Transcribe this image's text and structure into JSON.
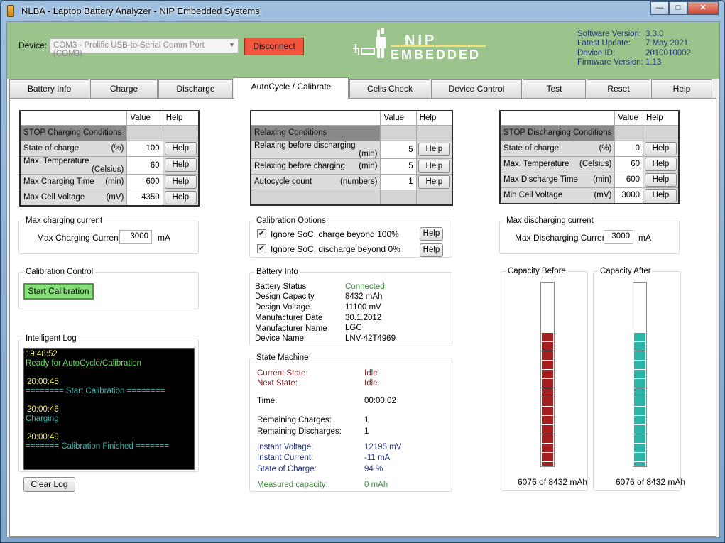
{
  "window": {
    "title": "NLBA - Laptop Battery Analyzer - NIP Embedded Systems",
    "minimize": "—",
    "maximize": "□",
    "close": "✕"
  },
  "header": {
    "device_label": "Device:",
    "device_value": "COM3 - Prolific USB-to-Serial Comm Port (COM3)",
    "disconnect": "Disconnect",
    "logo_line1": "NIP",
    "logo_line2": "EMBEDDED",
    "info": [
      {
        "k": "Software Version:",
        "v": "3.3.0"
      },
      {
        "k": "Latest Update:",
        "v": "7 May 2021"
      },
      {
        "k": "Device ID:",
        "v": "2010010002"
      },
      {
        "k": "Firmware Version:",
        "v": "1.13"
      }
    ]
  },
  "tabs": [
    "Battery Info",
    "Charge",
    "Discharge",
    "AutoCycle / Calibrate",
    "Cells Check",
    "Device Control",
    "Test",
    "Reset",
    "Help"
  ],
  "active_tab": "AutoCycle / Calibrate",
  "stop_charge": {
    "col_value": "Value",
    "col_help": "Help",
    "section": "STOP Charging Conditions",
    "rows": [
      {
        "name": "State of charge",
        "unit": "(%)",
        "value": "100",
        "help": "Help"
      },
      {
        "name": "Max. Temperature",
        "unit": "(Celsius)",
        "value": "60",
        "help": "Help"
      },
      {
        "name": "Max Charging Time",
        "unit": "(min)",
        "value": "600",
        "help": "Help"
      },
      {
        "name": "Max Cell Voltage",
        "unit": "(mV)",
        "value": "4350",
        "help": "Help"
      }
    ]
  },
  "relaxing": {
    "col_value": "Value",
    "col_help": "Help",
    "section": "Relaxing Conditions",
    "rows": [
      {
        "name": "Relaxing before discharging",
        "unit": "(min)",
        "value": "5",
        "help": "Help"
      },
      {
        "name": "Relaxing before charging",
        "unit": "(min)",
        "value": "5",
        "help": "Help"
      },
      {
        "name": "Autocycle count",
        "unit": "(numbers)",
        "value": "1",
        "help": "Help"
      }
    ]
  },
  "stop_discharge": {
    "col_value": "Value",
    "col_help": "Help",
    "section": "STOP Discharging Conditions",
    "rows": [
      {
        "name": "State of charge",
        "unit": "(%)",
        "value": "0",
        "help": "Help"
      },
      {
        "name": "Max. Temperature",
        "unit": "(Celsius)",
        "value": "60",
        "help": "Help"
      },
      {
        "name": "Max Discharge Time",
        "unit": "(min)",
        "value": "600",
        "help": "Help"
      },
      {
        "name": "Min Cell Voltage",
        "unit": "(mV)",
        "value": "3000",
        "help": "Help"
      }
    ]
  },
  "max_charging": {
    "title": "Max charging current",
    "label": "Max Charging Current:",
    "value": "3000",
    "unit": "mA"
  },
  "max_discharging": {
    "title": "Max discharging current",
    "label": "Max Discharging Current:",
    "value": "3000",
    "unit": "mA"
  },
  "calibration_options": {
    "title": "Calibration Options",
    "opt1": "Ignore SoC, charge beyond 100%",
    "opt2": "Ignore SoC, discharge beyond 0%",
    "opt1_checked": true,
    "opt2_checked": true,
    "help": "Help"
  },
  "calibration_control": {
    "title": "Calibration Control",
    "start": "Start Calibration"
  },
  "battery_info": {
    "title": "Battery Info",
    "rows": [
      {
        "k": "Battery Status",
        "v": "Connected"
      },
      {
        "k": "Design Capacity",
        "v": "8432 mAh"
      },
      {
        "k": "Design Voltage",
        "v": "11100 mV"
      },
      {
        "k": "Manufacturer Date",
        "v": "30.1.2012"
      },
      {
        "k": "Manufacturer Name",
        "v": "LGC"
      },
      {
        "k": "Device Name",
        "v": "LNV-42T4969"
      }
    ]
  },
  "state_machine": {
    "title": "State Machine",
    "current_state_k": "Current State:",
    "current_state_v": "Idle",
    "next_state_k": "Next State:",
    "next_state_v": "Idle",
    "time_k": "Time:",
    "time_v": "00:00:02",
    "rem_charges_k": "Remaining Charges:",
    "rem_charges_v": "1",
    "rem_discharges_k": "Remaining Discharges:",
    "rem_discharges_v": "1",
    "inst_voltage_k": "Instant Voltage:",
    "inst_voltage_v": "12195 mV",
    "inst_current_k": "Instant Current:",
    "inst_current_v": "-11 mA",
    "soc_k": "State of Charge:",
    "soc_v": "94 %",
    "measured_k": "Measured capacity:",
    "measured_v": "0 mAh"
  },
  "log": {
    "title": "Intelligent Log",
    "clear": "Clear Log",
    "entries": [
      {
        "time": "19:48:52",
        "msg": "Ready for AutoCycle/Calibration",
        "color": "g"
      },
      {
        "time": "20:00:45",
        "msg": "======== Start Calibration ========",
        "color": "c"
      },
      {
        "time": "20:00:46",
        "msg": "Charging",
        "color": "c"
      },
      {
        "time": "20:00:49",
        "msg": "======= Calibration Finished =======",
        "color": "c"
      }
    ]
  },
  "capacity_before": {
    "title": "Capacity Before",
    "text": "6076 of 8432 mAh",
    "fraction": 0.7206,
    "color": "#a31f1f"
  },
  "capacity_after": {
    "title": "Capacity After",
    "text": "6076 of 8432 mAh",
    "fraction": 0.7206,
    "color": "#2bb5a6"
  }
}
